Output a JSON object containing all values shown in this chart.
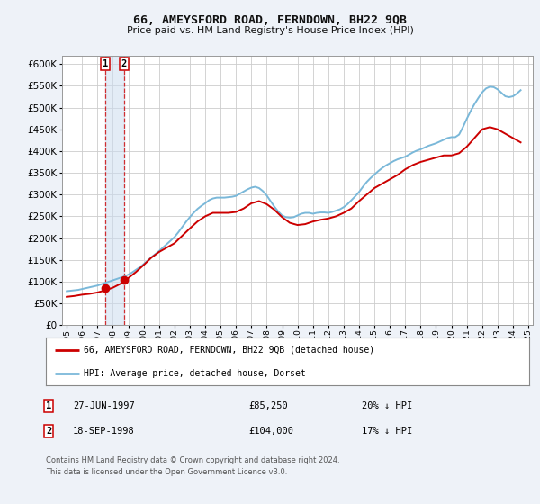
{
  "title": "66, AMEYSFORD ROAD, FERNDOWN, BH22 9QB",
  "subtitle": "Price paid vs. HM Land Registry's House Price Index (HPI)",
  "legend_line1": "66, AMEYSFORD ROAD, FERNDOWN, BH22 9QB (detached house)",
  "legend_line2": "HPI: Average price, detached house, Dorset",
  "annotation1_label": "1",
  "annotation1_date": "27-JUN-1997",
  "annotation1_price": "£85,250",
  "annotation1_hpi": "20% ↓ HPI",
  "annotation1_year": 1997.49,
  "annotation1_value": 85250,
  "annotation2_label": "2",
  "annotation2_date": "18-SEP-1998",
  "annotation2_price": "£104,000",
  "annotation2_hpi": "17% ↓ HPI",
  "annotation2_year": 1998.71,
  "annotation2_value": 104000,
  "footnote_line1": "Contains HM Land Registry data © Crown copyright and database right 2024.",
  "footnote_line2": "This data is licensed under the Open Government Licence v3.0.",
  "ylim": [
    0,
    620000
  ],
  "yticks": [
    0,
    50000,
    100000,
    150000,
    200000,
    250000,
    300000,
    350000,
    400000,
    450000,
    500000,
    550000,
    600000
  ],
  "hpi_color": "#7ab8d9",
  "price_color": "#cc0000",
  "grid_color": "#cccccc",
  "background_color": "#eef2f8",
  "plot_bg_color": "#ffffff",
  "hpi_x": [
    1995.0,
    1995.25,
    1995.5,
    1995.75,
    1996.0,
    1996.25,
    1996.5,
    1996.75,
    1997.0,
    1997.25,
    1997.5,
    1997.75,
    1998.0,
    1998.25,
    1998.5,
    1998.75,
    1999.0,
    1999.25,
    1999.5,
    1999.75,
    2000.0,
    2000.25,
    2000.5,
    2000.75,
    2001.0,
    2001.25,
    2001.5,
    2001.75,
    2002.0,
    2002.25,
    2002.5,
    2002.75,
    2003.0,
    2003.25,
    2003.5,
    2003.75,
    2004.0,
    2004.25,
    2004.5,
    2004.75,
    2005.0,
    2005.25,
    2005.5,
    2005.75,
    2006.0,
    2006.25,
    2006.5,
    2006.75,
    2007.0,
    2007.25,
    2007.5,
    2007.75,
    2008.0,
    2008.25,
    2008.5,
    2008.75,
    2009.0,
    2009.25,
    2009.5,
    2009.75,
    2010.0,
    2010.25,
    2010.5,
    2010.75,
    2011.0,
    2011.25,
    2011.5,
    2011.75,
    2012.0,
    2012.25,
    2012.5,
    2012.75,
    2013.0,
    2013.25,
    2013.5,
    2013.75,
    2014.0,
    2014.25,
    2014.5,
    2014.75,
    2015.0,
    2015.25,
    2015.5,
    2015.75,
    2016.0,
    2016.25,
    2016.5,
    2016.75,
    2017.0,
    2017.25,
    2017.5,
    2017.75,
    2018.0,
    2018.25,
    2018.5,
    2018.75,
    2019.0,
    2019.25,
    2019.5,
    2019.75,
    2020.0,
    2020.25,
    2020.5,
    2020.75,
    2021.0,
    2021.25,
    2021.5,
    2021.75,
    2022.0,
    2022.25,
    2022.5,
    2022.75,
    2023.0,
    2023.25,
    2023.5,
    2023.75,
    2024.0,
    2024.25,
    2024.5
  ],
  "hpi_y": [
    78000,
    79000,
    80000,
    81000,
    83000,
    85000,
    87000,
    89000,
    91000,
    94000,
    97000,
    100000,
    103000,
    106000,
    109000,
    112000,
    116000,
    121000,
    127000,
    133000,
    140000,
    148000,
    156000,
    163000,
    170000,
    178000,
    186000,
    194000,
    202000,
    213000,
    225000,
    237000,
    248000,
    258000,
    267000,
    274000,
    280000,
    287000,
    291000,
    293000,
    293000,
    293000,
    294000,
    295000,
    297000,
    302000,
    307000,
    312000,
    316000,
    318000,
    315000,
    308000,
    298000,
    285000,
    272000,
    261000,
    252000,
    248000,
    247000,
    248000,
    252000,
    256000,
    258000,
    258000,
    256000,
    258000,
    259000,
    259000,
    258000,
    260000,
    263000,
    266000,
    271000,
    278000,
    287000,
    296000,
    306000,
    318000,
    329000,
    338000,
    346000,
    354000,
    361000,
    367000,
    372000,
    377000,
    381000,
    384000,
    387000,
    392000,
    397000,
    401000,
    404000,
    408000,
    412000,
    415000,
    418000,
    422000,
    426000,
    430000,
    432000,
    432000,
    438000,
    455000,
    474000,
    492000,
    508000,
    522000,
    535000,
    544000,
    548000,
    547000,
    542000,
    534000,
    526000,
    524000,
    526000,
    532000,
    540000
  ],
  "price_x": [
    1995.0,
    1995.5,
    1996.0,
    1996.5,
    1997.0,
    1997.5,
    1998.0,
    1998.5,
    1999.0,
    1999.5,
    2000.0,
    2000.5,
    2001.0,
    2001.5,
    2002.0,
    2002.5,
    2003.0,
    2003.5,
    2004.0,
    2004.5,
    2005.0,
    2005.5,
    2006.0,
    2006.5,
    2007.0,
    2007.5,
    2008.0,
    2008.5,
    2009.0,
    2009.5,
    2010.0,
    2010.5,
    2011.0,
    2011.5,
    2012.0,
    2012.5,
    2013.0,
    2013.5,
    2014.0,
    2014.5,
    2015.0,
    2015.5,
    2016.0,
    2016.5,
    2017.0,
    2017.5,
    2018.0,
    2018.5,
    2019.0,
    2019.5,
    2020.0,
    2020.5,
    2021.0,
    2021.5,
    2022.0,
    2022.5,
    2023.0,
    2023.5,
    2024.0,
    2024.5
  ],
  "price_y": [
    65000,
    67000,
    70000,
    72000,
    75000,
    80000,
    86000,
    95000,
    108000,
    122000,
    138000,
    155000,
    168000,
    178000,
    188000,
    205000,
    222000,
    238000,
    250000,
    258000,
    258000,
    258000,
    260000,
    268000,
    280000,
    285000,
    278000,
    265000,
    248000,
    235000,
    230000,
    232000,
    238000,
    242000,
    245000,
    250000,
    258000,
    268000,
    285000,
    300000,
    315000,
    325000,
    335000,
    345000,
    358000,
    368000,
    375000,
    380000,
    385000,
    390000,
    390000,
    395000,
    410000,
    430000,
    450000,
    455000,
    450000,
    440000,
    430000,
    420000
  ],
  "xlim_start": 1994.7,
  "xlim_end": 2025.3
}
